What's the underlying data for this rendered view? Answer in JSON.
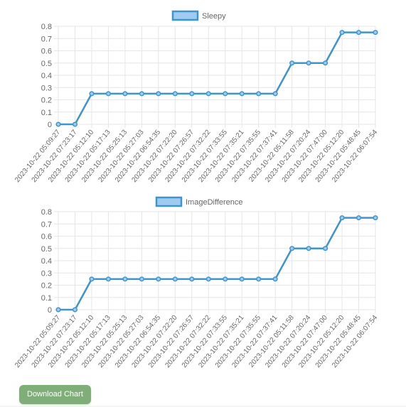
{
  "charts": [
    {
      "legend_label": "Sleepy"
    },
    {
      "legend_label": "ImageDifference"
    }
  ],
  "download_button_label": "Download Chart",
  "colors": {
    "line": "#3e95cd",
    "legend_fill": "#9ecbef",
    "point_fill": "#9ecbef",
    "grid": "#e6e6e6",
    "axis_text": "#666666",
    "button_bg": "#7fae78",
    "button_text": "#ffffff"
  },
  "chart_data": [
    {
      "type": "line",
      "series": [
        {
          "name": "Sleepy",
          "values": [
            0,
            0,
            0.25,
            0.25,
            0.25,
            0.25,
            0.25,
            0.25,
            0.25,
            0.25,
            0.25,
            0.25,
            0.25,
            0.25,
            0.5,
            0.5,
            0.5,
            0.75,
            0.75,
            0.75
          ]
        }
      ],
      "categories": [
        "2023-10-22 05:09:27",
        "2023-10-22 07:23:17",
        "2023-10-22 05:12:10",
        "2023-10-22 05:17:13",
        "2023-10-22 05:25:13",
        "2023-10-22 05:27:03",
        "2023-10-22 06:54:35",
        "2023-10-22 07:22:20",
        "2023-10-22 07:26:57",
        "2023-10-22 07:32:22",
        "2023-10-22 07:33:55",
        "2023-10-22 07:35:21",
        "2023-10-22 07:35:55",
        "2023-10-22 07:37:41",
        "2023-10-22 05:11:58",
        "2023-10-22 07:20:24",
        "2023-10-22 07:47:00",
        "2023-10-22 05:12:20",
        "2023-10-22 05:48:45",
        "2023-10-22 06:07:54"
      ],
      "y_ticks": [
        "0",
        "0.1",
        "0.2",
        "0.3",
        "0.4",
        "0.5",
        "0.6",
        "0.7",
        "0.8"
      ],
      "ylim": [
        0,
        0.8
      ],
      "grid": true,
      "legend_position": "top"
    },
    {
      "type": "line",
      "series": [
        {
          "name": "ImageDifference",
          "values": [
            0,
            0,
            0.25,
            0.25,
            0.25,
            0.25,
            0.25,
            0.25,
            0.25,
            0.25,
            0.25,
            0.25,
            0.25,
            0.25,
            0.5,
            0.5,
            0.5,
            0.75,
            0.75,
            0.75
          ]
        }
      ],
      "categories": [
        "2023-10-22 05:09:27",
        "2023-10-22 07:23:17",
        "2023-10-22 05:12:10",
        "2023-10-22 05:17:13",
        "2023-10-22 05:25:13",
        "2023-10-22 05:27:03",
        "2023-10-22 06:54:35",
        "2023-10-22 07:22:20",
        "2023-10-22 07:26:57",
        "2023-10-22 07:32:22",
        "2023-10-22 07:33:55",
        "2023-10-22 07:35:21",
        "2023-10-22 07:35:55",
        "2023-10-22 07:37:41",
        "2023-10-22 05:11:58",
        "2023-10-22 07:20:24",
        "2023-10-22 07:47:00",
        "2023-10-22 05:12:20",
        "2023-10-22 05:48:45",
        "2023-10-22 06:07:54"
      ],
      "y_ticks": [
        "0",
        "0.1",
        "0.2",
        "0.3",
        "0.4",
        "0.5",
        "0.6",
        "0.7",
        "0.8"
      ],
      "ylim": [
        0,
        0.8
      ],
      "grid": true,
      "legend_position": "top"
    }
  ]
}
